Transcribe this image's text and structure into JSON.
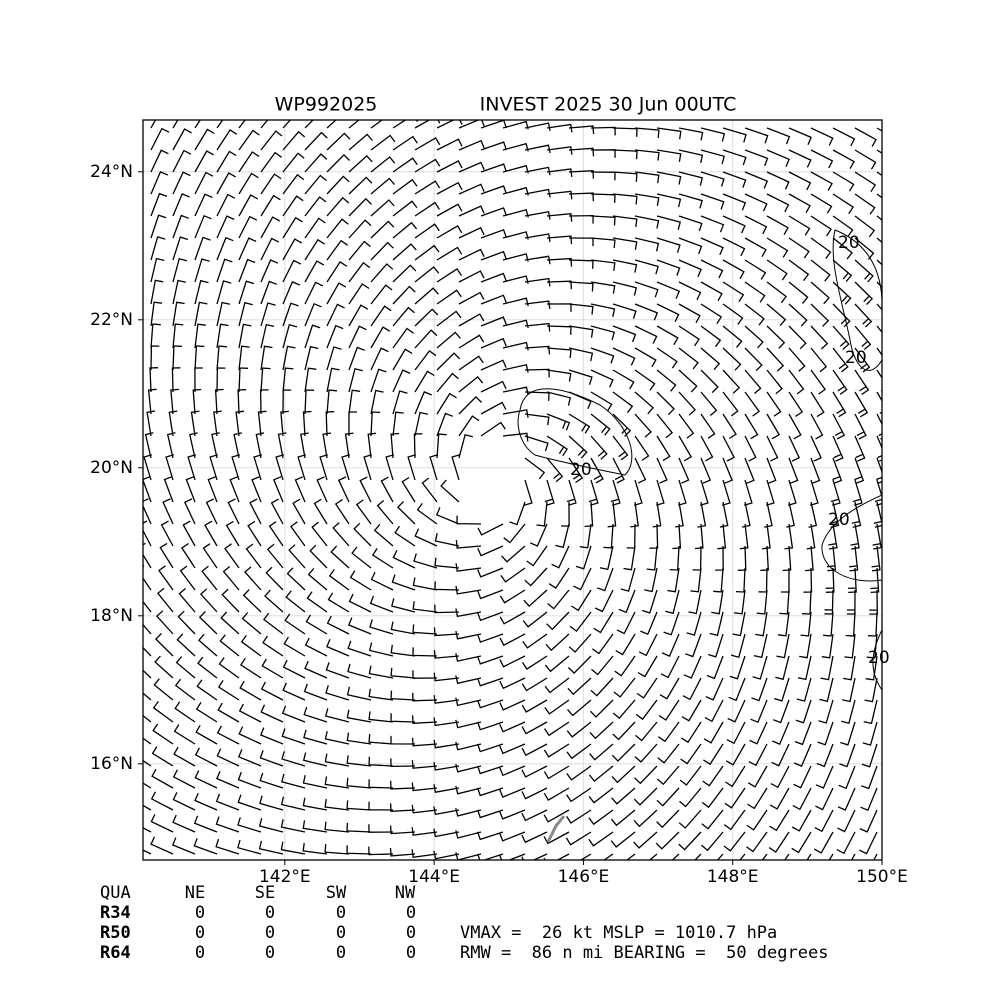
{
  "map": {
    "title_left": "WP992025",
    "title_right": "INVEST 2025 30 Jun 00UTC",
    "xlim": [
      140.1,
      150.0
    ],
    "ylim": [
      14.7,
      24.7
    ],
    "xticks": [
      {
        "value": 142,
        "label": "142°E"
      },
      {
        "value": 144,
        "label": "144°E"
      },
      {
        "value": 146,
        "label": "146°E"
      },
      {
        "value": 148,
        "label": "148°E"
      },
      {
        "value": 150,
        "label": "150°E"
      }
    ],
    "yticks": [
      {
        "value": 16,
        "label": "16°N"
      },
      {
        "value": 18,
        "label": "18°N"
      },
      {
        "value": 20,
        "label": "20°N"
      },
      {
        "value": 22,
        "label": "22°N"
      },
      {
        "value": 24,
        "label": "24°N"
      }
    ],
    "grid": true,
    "contour_labels": [
      "20",
      "20",
      "20",
      "20",
      "20"
    ]
  },
  "table": {
    "header": [
      "QUA",
      "NE",
      "SE",
      "SW",
      "NW"
    ],
    "rows": [
      [
        "R34",
        "0",
        "0",
        "0",
        "0"
      ],
      [
        "R50",
        "0",
        "0",
        "0",
        "0"
      ],
      [
        "R64",
        "0",
        "0",
        "0",
        "0"
      ]
    ]
  },
  "summary": [
    "VMAX =  26 kt MSLP = 1010.7 hPa",
    "RMW =  86 n mi BEARING =  50 degrees"
  ]
}
